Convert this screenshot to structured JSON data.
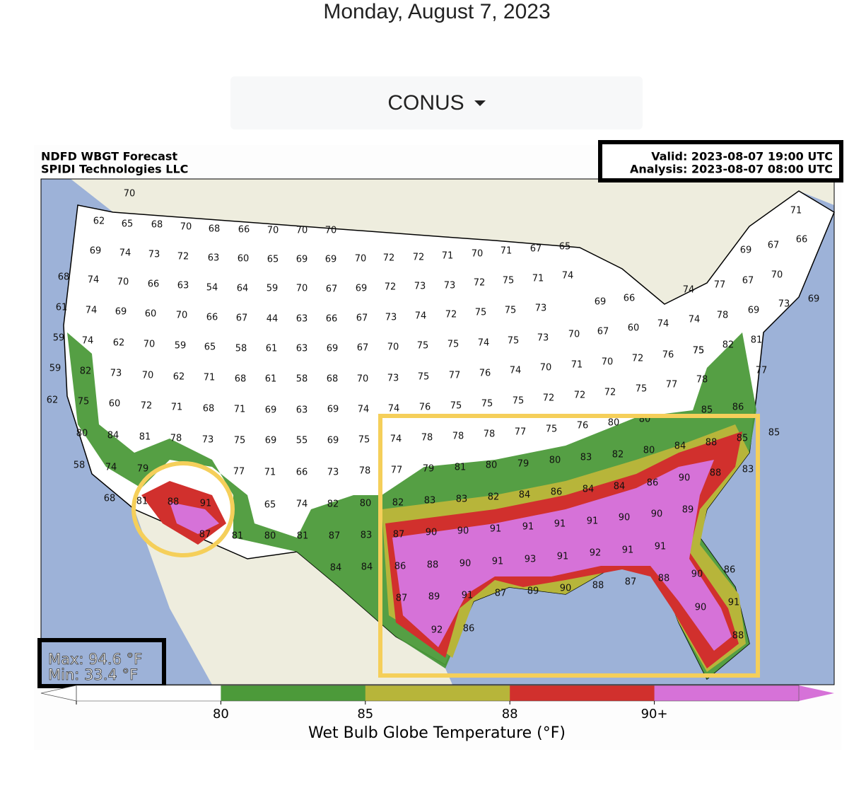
{
  "page_title": "Monday, August 7, 2023",
  "dropdown": {
    "label": "CONUS"
  },
  "map": {
    "title_lines": [
      "NDFD WBGT Forecast",
      "SPIDI Technologies LLC"
    ],
    "valid": "Valid: 2023-08-07 19:00 UTC",
    "analysis": "Analysis: 2023-08-07 08:00 UTC",
    "max": "Max: 94.6 °F",
    "min": "Min: 33.4 °F",
    "stations": [
      70,
      62,
      65,
      68,
      70,
      68,
      66,
      70,
      70,
      70,
      69,
      74,
      73,
      72,
      63,
      60,
      65,
      69,
      69,
      70,
      72,
      72,
      71,
      70,
      71,
      67,
      65,
      68,
      74,
      70,
      66,
      63,
      54,
      64,
      59,
      70,
      67,
      69,
      72,
      73,
      73,
      72,
      75,
      71,
      74,
      61,
      74,
      69,
      60,
      70,
      66,
      67,
      44,
      63,
      66,
      67,
      73,
      74,
      72,
      75,
      75,
      73,
      69,
      66,
      59,
      74,
      62,
      70,
      59,
      65,
      58,
      61,
      63,
      69,
      67,
      70,
      75,
      75,
      74,
      75,
      73,
      70,
      67,
      60,
      74,
      74,
      78,
      59,
      82,
      73,
      70,
      62,
      71,
      68,
      61,
      58,
      68,
      70,
      73,
      75,
      77,
      76,
      74,
      70,
      71,
      70,
      72,
      76,
      75,
      82,
      62,
      75,
      60,
      72,
      71,
      68,
      71,
      69,
      63,
      69,
      74,
      74,
      76,
      75,
      75,
      75,
      72,
      72,
      72,
      75,
      77,
      78,
      80,
      84,
      81,
      78,
      73,
      75,
      69,
      55,
      69,
      75,
      74,
      78,
      78,
      78,
      77,
      75,
      76,
      80,
      80,
      85,
      86,
      85,
      58,
      74,
      79,
      77,
      71,
      66,
      73,
      78,
      77,
      79,
      81,
      80,
      79,
      80,
      83,
      82,
      80,
      84,
      88,
      85,
      68,
      81,
      88,
      91,
      65,
      74,
      82,
      80,
      82,
      83,
      83,
      82,
      84,
      86,
      84,
      84,
      86,
      90,
      88,
      83,
      87,
      81,
      80,
      81,
      87,
      83,
      87,
      90,
      90,
      91,
      91,
      91,
      91,
      90,
      90,
      89,
      84,
      84,
      86,
      88,
      90,
      91,
      93,
      91,
      92,
      91,
      91,
      86,
      87,
      89,
      91,
      87,
      89,
      90,
      88,
      87,
      88,
      90,
      86,
      92,
      90,
      91,
      88,
      69,
      67,
      66,
      71,
      69,
      77,
      67,
      70,
      69,
      73,
      74,
      77,
      81,
      75
    ]
  },
  "colorbar": {
    "title": "Wet Bulb Globe Temperature (°F)",
    "colors": [
      "#ffffff",
      "#4c9a3a",
      "#b7b53a",
      "#d1302d",
      "#d672d8"
    ],
    "ticks": [
      80,
      85,
      88,
      {
        "value": 90,
        "label": "90+"
      }
    ]
  }
}
